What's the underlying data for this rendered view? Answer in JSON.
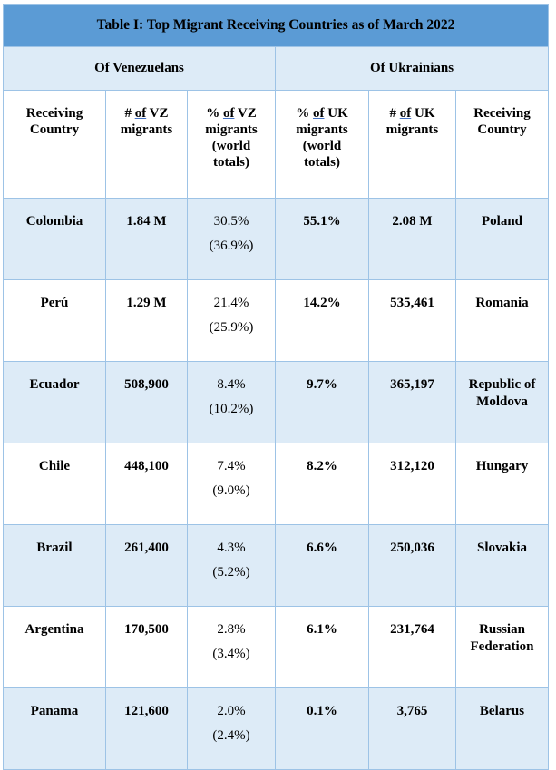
{
  "title": "Table I: Top Migrant Receiving Countries as of March 2022",
  "groups": {
    "venezuelans": "Of Venezuelans",
    "ukrainians": "Of Ukrainians"
  },
  "columns": {
    "receiving_country_left": [
      "Receiving",
      "Country"
    ],
    "vz_count": [
      "# of VZ",
      "migrants"
    ],
    "vz_pct": [
      "% of VZ",
      "migrants",
      "(world",
      "totals)"
    ],
    "uk_pct": [
      "% of UK",
      "migrants",
      "(world",
      "totals)"
    ],
    "uk_count": [
      "# of UK",
      "migrants"
    ],
    "receiving_country_right": [
      "Receiving",
      "Country"
    ]
  },
  "rows": [
    {
      "vz_country": "Colombia",
      "vz_count": "1.84 M",
      "vz_pct": "30.5%",
      "vz_pct_adj": "(36.9%)",
      "uk_pct": "55.1%",
      "uk_count": "2.08 M",
      "uk_country": "Poland"
    },
    {
      "vz_country": "Perú",
      "vz_count": "1.29 M",
      "vz_pct": "21.4%",
      "vz_pct_adj": "(25.9%)",
      "uk_pct": "14.2%",
      "uk_count": "535,461",
      "uk_country": "Romania"
    },
    {
      "vz_country": "Ecuador",
      "vz_count": "508,900",
      "vz_pct": "8.4%",
      "vz_pct_adj": "(10.2%)",
      "uk_pct": "9.7%",
      "uk_count": "365,197",
      "uk_country": "Republic of Moldova"
    },
    {
      "vz_country": "Chile",
      "vz_count": "448,100",
      "vz_pct": "7.4%",
      "vz_pct_adj": "(9.0%)",
      "uk_pct": "8.2%",
      "uk_count": "312,120",
      "uk_country": "Hungary"
    },
    {
      "vz_country": "Brazil",
      "vz_count": "261,400",
      "vz_pct": "4.3%",
      "vz_pct_adj": "(5.2%)",
      "uk_pct": "6.6%",
      "uk_count": "250,036",
      "uk_country": "Slovakia"
    },
    {
      "vz_country": "Argentina",
      "vz_count": "170,500",
      "vz_pct": "2.8%",
      "vz_pct_adj": "(3.4%)",
      "uk_pct": "6.1%",
      "uk_count": "231,764",
      "uk_country": "Russian Federation"
    },
    {
      "vz_country": "Panama",
      "vz_count": "121,600",
      "vz_pct": "2.0%",
      "vz_pct_adj": "(2.4%)",
      "uk_pct": "0.1%",
      "uk_count": "3,765",
      "uk_country": "Belarus"
    }
  ]
}
